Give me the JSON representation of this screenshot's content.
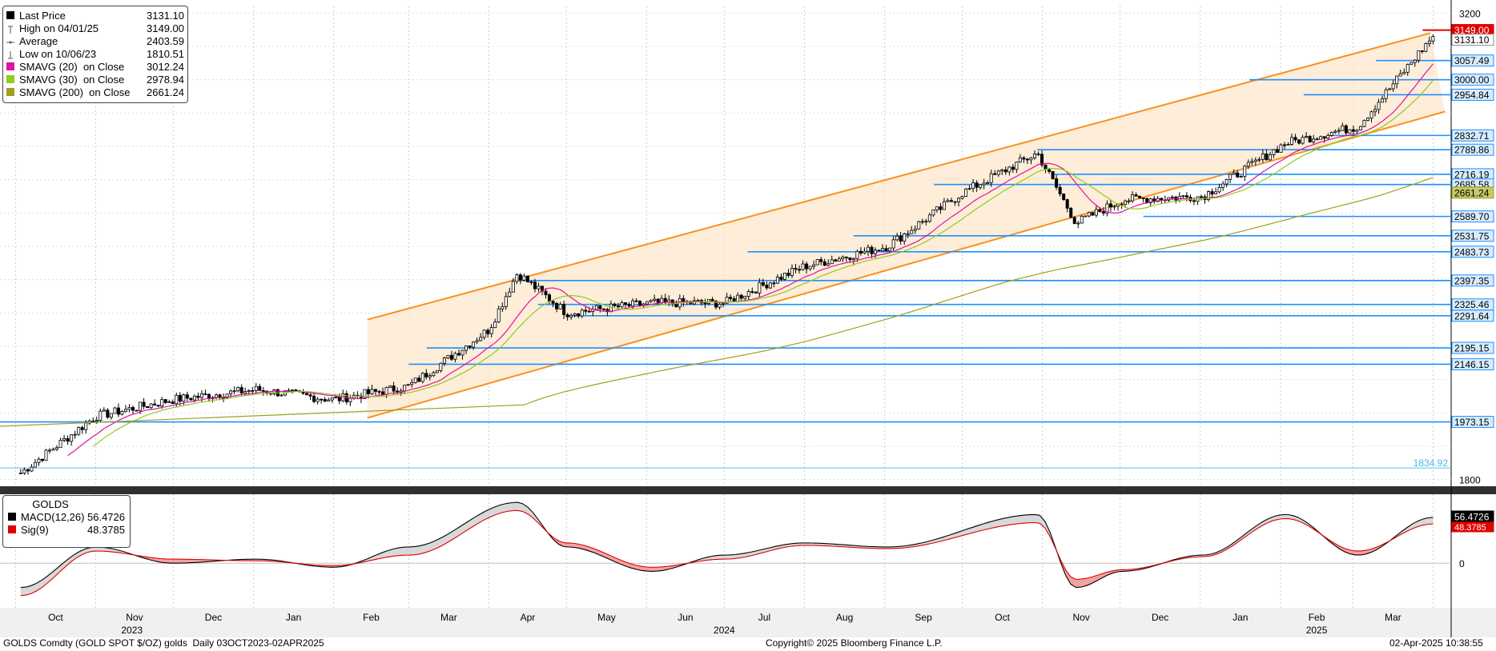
{
  "legend": [
    {
      "label": "Last Price",
      "value": "3131.10",
      "color": "#000000",
      "icon": "square"
    },
    {
      "label": "High on 04/01/25",
      "value": "3149.00",
      "color": "#555555",
      "icon": "high-tick"
    },
    {
      "label": "Average",
      "value": "2403.59",
      "color": "#555555",
      "icon": "dash"
    },
    {
      "label": "Low on 10/06/23",
      "value": "1810.51",
      "color": "#555555",
      "icon": "low-tick"
    },
    {
      "label": "SMAVG (20)  on Close",
      "value": "3012.24",
      "color": "#e0139a",
      "icon": "square"
    },
    {
      "label": "SMAVG (30)  on Close",
      "value": "2978.94",
      "color": "#8fcc1c",
      "icon": "square"
    },
    {
      "label": "SMAVG (200)  on Close",
      "value": "2661.24",
      "color": "#a0a01e",
      "icon": "square"
    }
  ],
  "macd_legend": {
    "title": "GOLDS",
    "items": [
      {
        "label": "MACD(12,26)",
        "value": "56.4726",
        "color": "#000000"
      },
      {
        "label": "Sig(9)",
        "value": "48.3785",
        "color": "#e00000"
      }
    ]
  },
  "price_axis_ticks": [
    "3200",
    "1800"
  ],
  "macd_axis_ticks": [
    "0"
  ],
  "level_labels": [
    {
      "text": "3149.00",
      "style": "red"
    },
    {
      "text": "3057.49",
      "style": "blue"
    },
    {
      "text": "3000.00",
      "style": "blue"
    },
    {
      "text": "2954.84",
      "style": "blue"
    },
    {
      "text": "2832.71",
      "style": "blue"
    },
    {
      "text": "2789.86",
      "style": "blue"
    },
    {
      "text": "2716.19",
      "style": "blue"
    },
    {
      "text": "2685.58",
      "style": "blue"
    },
    {
      "text": "2589.70",
      "style": "blue"
    },
    {
      "text": "2531.75",
      "style": "blue"
    },
    {
      "text": "2483.73",
      "style": "blue"
    },
    {
      "text": "2397.35",
      "style": "blue"
    },
    {
      "text": "2325.46",
      "style": "blue"
    },
    {
      "text": "2291.64",
      "style": "blue"
    },
    {
      "text": "2195.15",
      "style": "blue"
    },
    {
      "text": "2146.15",
      "style": "blue"
    },
    {
      "text": "1973.15",
      "style": "blue"
    }
  ],
  "side_values": {
    "last_price": "3131.10",
    "sma200": "2661.24",
    "macd": "56.4726",
    "signal": "48.3785",
    "low_line": "1834.92"
  },
  "x_axis": {
    "months": [
      "Oct",
      "Nov",
      "Dec",
      "Jan",
      "Feb",
      "Mar",
      "Apr",
      "May",
      "Jun",
      "Jul",
      "Aug",
      "Sep",
      "Oct",
      "Nov",
      "Dec",
      "Jan",
      "Feb",
      "Mar"
    ],
    "years": [
      "2023",
      "2024",
      "2025"
    ]
  },
  "footer": {
    "left": "GOLDS Comdty (GOLD SPOT $/OZ) golds  Daily 03OCT2023-02APR2025",
    "center": "Copyright© 2025 Bloomberg Finance L.P.",
    "right": "02-Apr-2025 10:38:55"
  },
  "colors": {
    "channel": "#f7931e",
    "channel_fill": "#fde7cc",
    "level_line": "#1e90ff",
    "sma20": "#e0139a",
    "sma30": "#8fcc1c",
    "sma200": "#a0a01e",
    "signal": "#e00000",
    "macd_fill_up": "#d8d8d8",
    "macd_fill_down": "#f4a0a0"
  },
  "chart_data": {
    "type": "line",
    "title": "",
    "ylim_approx": [
      1780,
      3220
    ],
    "series": [
      {
        "name": "Last Price",
        "x": [
          "2023-10-03",
          "2023-11-01",
          "2023-12-01",
          "2024-01-02",
          "2024-02-01",
          "2024-03-01",
          "2024-04-01",
          "2024-04-12",
          "2024-05-01",
          "2024-06-03",
          "2024-07-01",
          "2024-08-01",
          "2024-09-02",
          "2024-10-01",
          "2024-10-30",
          "2024-11-14",
          "2024-12-02",
          "2025-01-02",
          "2025-02-03",
          "2025-03-03",
          "2025-04-01"
        ],
        "y": [
          1820,
          1990,
          2040,
          2070,
          2040,
          2080,
          2250,
          2420,
          2300,
          2330,
          2330,
          2440,
          2500,
          2660,
          2780,
          2570,
          2640,
          2650,
          2810,
          2860,
          3131.1
        ]
      },
      {
        "name": "SMAVG (20)  on Close",
        "y_last": 3012.24
      },
      {
        "name": "SMAVG (30)  on Close",
        "y_last": 2978.94
      },
      {
        "name": "SMAVG (200)  on Close",
        "y_last": 2661.24
      }
    ],
    "macd": {
      "x": [
        "2023-10-03",
        "2023-11-01",
        "2023-12-01",
        "2024-01-02",
        "2024-02-01",
        "2024-03-01",
        "2024-04-12",
        "2024-05-01",
        "2024-06-03",
        "2024-07-01",
        "2024-08-01",
        "2024-09-02",
        "2024-10-30",
        "2024-11-14",
        "2024-12-02",
        "2025-01-02",
        "2025-02-03",
        "2025-03-03",
        "2025-04-01"
      ],
      "macd": [
        -30,
        20,
        0,
        5,
        -5,
        20,
        75,
        20,
        -10,
        10,
        25,
        20,
        60,
        -30,
        -10,
        10,
        60,
        10,
        56.4726
      ],
      "signal": [
        -40,
        15,
        5,
        3,
        -3,
        10,
        65,
        25,
        -5,
        5,
        22,
        18,
        50,
        -20,
        -8,
        8,
        55,
        15,
        48.3785
      ]
    }
  }
}
